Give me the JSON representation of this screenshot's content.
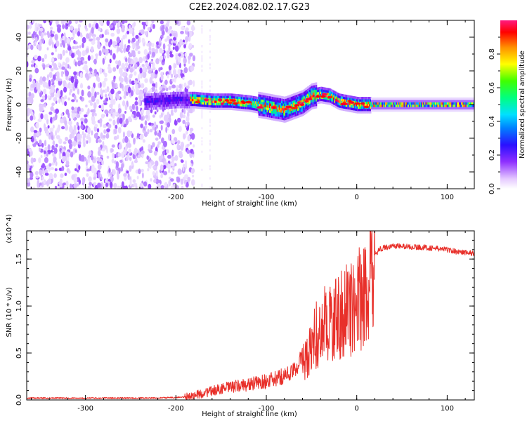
{
  "title": "C2E2.2024.082.02.17.G23",
  "colorbar": {
    "label": "Normalized spectral amplitude",
    "ticks": [
      "0.0",
      "0.2",
      "0.4",
      "0.6",
      "0.8"
    ]
  },
  "chart_data": [
    {
      "type": "heatmap",
      "xlabel": "Height of straight line (km)",
      "ylabel": "Frequency (Hz)",
      "xlim": [
        -365,
        130
      ],
      "ylim": [
        -50,
        50
      ],
      "xticks": [
        -300,
        -200,
        -100,
        0,
        100
      ],
      "xtick_labels": [
        "-300",
        "-200",
        "-100",
        "0",
        "100"
      ],
      "yticks": [
        -40,
        -20,
        0,
        20,
        40
      ],
      "ytick_labels": [
        "-40",
        "-20",
        "0",
        "20",
        "40"
      ],
      "colormap": "rainbow, magenta/purple at low amplitude to red at high amplitude",
      "colormap_colors": [
        "#ffffff",
        "#e0c8ff",
        "#9a50ff",
        "#6a00ee",
        "#2020ff",
        "#00c8ff",
        "#00ff60",
        "#ffff00",
        "#ff8000",
        "#ff0000",
        "#ff0080"
      ],
      "value_range": [
        0,
        1
      ],
      "regions": [
        {
          "x": [
            -365,
            -180
          ],
          "y": [
            -50,
            50
          ],
          "level": 0.08
        },
        {
          "x": [
            -180,
            15
          ],
          "y": [
            -10,
            7
          ],
          "level": 0.35,
          "peak": 1.0
        },
        {
          "x": [
            15,
            130
          ],
          "y": [
            -3,
            5
          ],
          "level": 0.25,
          "peak": 1.0
        }
      ],
      "ridge_x": [
        -230,
        -200,
        -180,
        -160,
        -140,
        -120,
        -100,
        -90,
        -80,
        -70,
        -60,
        -50,
        -40,
        -30,
        -20,
        -10,
        0,
        20,
        60,
        100,
        130
      ],
      "ridge_y": [
        2,
        3,
        3,
        2,
        2,
        1,
        -1,
        -2,
        -3,
        -1,
        1,
        5,
        6,
        5,
        2,
        1,
        0,
        0,
        0,
        0,
        0
      ]
    },
    {
      "type": "line",
      "xlabel": "Height of straight line (km)",
      "ylabel": "SNR (10 * v/v)",
      "scale_label": "(x10^4)",
      "xlim": [
        -365,
        130
      ],
      "ylim": [
        0,
        1.8
      ],
      "xticks": [
        -300,
        -200,
        -100,
        0,
        100
      ],
      "xtick_labels": [
        "-300",
        "-200",
        "-100",
        "0",
        "100"
      ],
      "yticks": [
        0.0,
        0.5,
        1.0,
        1.5
      ],
      "ytick_labels": [
        "0.0",
        "0.5",
        "1.0",
        "1.5"
      ],
      "color": "#e8302a",
      "x": [
        -365,
        -300,
        -220,
        -190,
        -170,
        -150,
        -130,
        -110,
        -90,
        -70,
        -55,
        -45,
        -35,
        -25,
        -15,
        -5,
        5,
        10,
        15,
        20,
        25,
        30,
        40,
        60,
        80,
        100,
        110,
        130
      ],
      "y": [
        0.02,
        0.02,
        0.02,
        0.03,
        0.07,
        0.12,
        0.15,
        0.18,
        0.22,
        0.3,
        0.55,
        0.8,
        0.95,
        1.0,
        1.1,
        1.15,
        1.3,
        1.35,
        1.45,
        1.55,
        1.6,
        1.62,
        1.64,
        1.63,
        1.62,
        1.6,
        1.58,
        1.56
      ]
    }
  ]
}
